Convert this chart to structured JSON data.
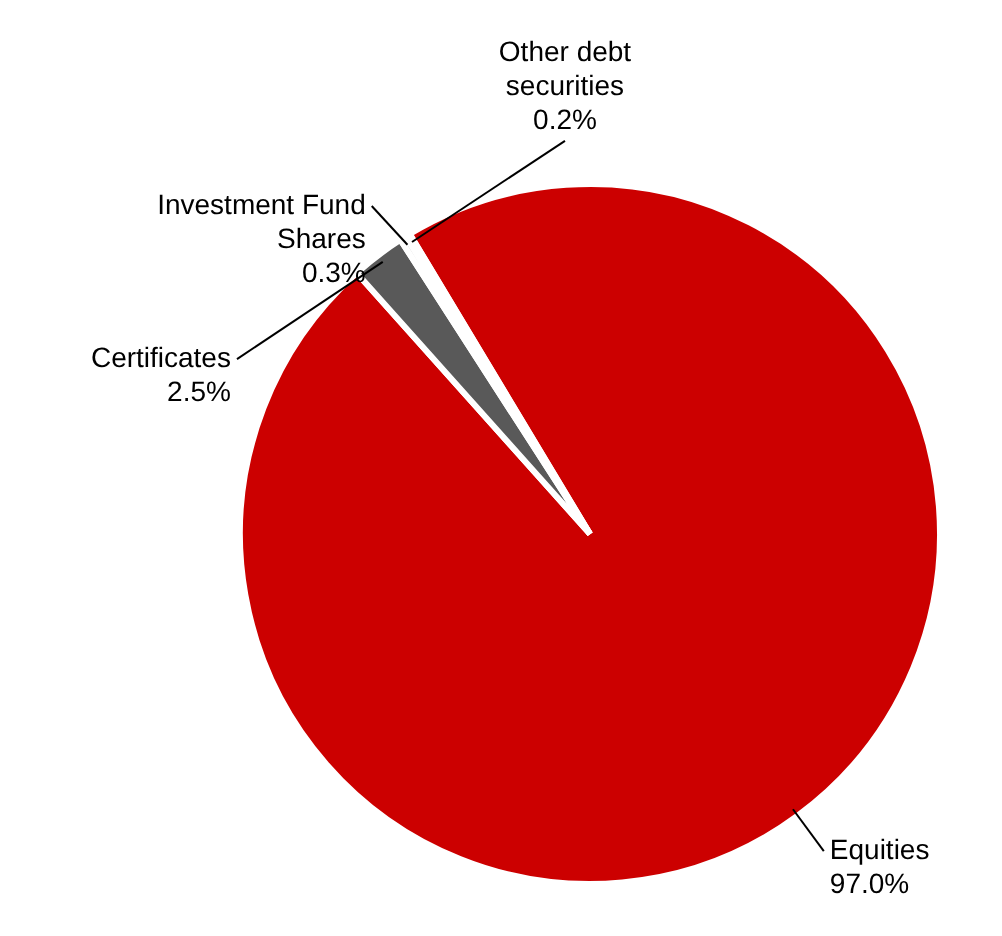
{
  "chart_data": {
    "type": "pie",
    "categories": [
      "Equities",
      "Certificates",
      "Investment Fund Shares",
      "Other debt securities"
    ],
    "values": [
      97.0,
      2.5,
      0.3,
      0.2
    ],
    "colors": [
      "#cc0000",
      "#595959",
      "#d9d9d9",
      "#ffb000"
    ],
    "value_labels": [
      "97.0%",
      "2.5%",
      "0.3%",
      "0.2%"
    ],
    "legend": false
  }
}
